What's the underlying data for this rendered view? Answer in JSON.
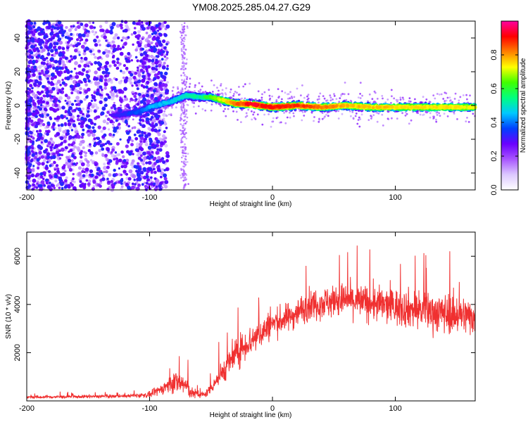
{
  "chart_data": [
    {
      "type": "heatmap",
      "title": "YM08.2025.285.04.27.G29",
      "xlabel": "Height of straight line (km)",
      "ylabel": "Frequency (Hz)",
      "xlim": [
        -200,
        165
      ],
      "ylim": [
        -50,
        50
      ],
      "xticks": [
        -200,
        -100,
        0,
        100
      ],
      "yticks": [
        -40,
        -20,
        0,
        20,
        40
      ],
      "colorbar": {
        "label": "Normalized spectral amplitude",
        "range": [
          0,
          1
        ],
        "ticks": [
          0.0,
          0.2,
          0.4,
          0.6,
          0.8
        ],
        "colors": [
          "#ffffff",
          "#dcc8ff",
          "#a855ff",
          "#6a00ff",
          "#0040ff",
          "#00c8ff",
          "#00ff80",
          "#40ff00",
          "#ffff00",
          "#ff8000",
          "#ff0000",
          "#ff00a0"
        ]
      },
      "ridge": [
        {
          "x": -130,
          "y": -6
        },
        {
          "x": -120,
          "y": -5
        },
        {
          "x": -110,
          "y": -4
        },
        {
          "x": -100,
          "y": -1
        },
        {
          "x": -90,
          "y": 1
        },
        {
          "x": -80,
          "y": 3
        },
        {
          "x": -70,
          "y": 6
        },
        {
          "x": -60,
          "y": 5
        },
        {
          "x": -50,
          "y": 5
        },
        {
          "x": -40,
          "y": 3
        },
        {
          "x": -30,
          "y": 1
        },
        {
          "x": -20,
          "y": 1
        },
        {
          "x": -10,
          "y": 0
        },
        {
          "x": 0,
          "y": -1
        },
        {
          "x": 20,
          "y": 0
        },
        {
          "x": 40,
          "y": -1
        },
        {
          "x": 60,
          "y": 0
        },
        {
          "x": 80,
          "y": -1
        },
        {
          "x": 100,
          "y": -1
        },
        {
          "x": 120,
          "y": -1
        },
        {
          "x": 140,
          "y": -1
        },
        {
          "x": 165,
          "y": -1
        }
      ],
      "amplitude_profile": [
        {
          "x": -200,
          "a": 0.22
        },
        {
          "x": -140,
          "a": 0.25
        },
        {
          "x": -120,
          "a": 0.35
        },
        {
          "x": -100,
          "a": 0.45
        },
        {
          "x": -80,
          "a": 0.5
        },
        {
          "x": -60,
          "a": 0.55
        },
        {
          "x": -40,
          "a": 0.75
        },
        {
          "x": -20,
          "a": 0.95
        },
        {
          "x": 20,
          "a": 0.9
        },
        {
          "x": 60,
          "a": 0.8
        },
        {
          "x": 100,
          "a": 0.78
        },
        {
          "x": 165,
          "a": 0.75
        }
      ]
    },
    {
      "type": "line",
      "xlabel": "Height of straight line (km)",
      "ylabel": "SNR (10 * v/v)",
      "xlim": [
        -200,
        165
      ],
      "ylim": [
        0,
        7000
      ],
      "xticks": [
        -200,
        -100,
        0,
        100
      ],
      "yticks": [
        2000,
        4000,
        6000
      ],
      "series": [
        {
          "name": "SNR",
          "color": "#f03030",
          "envelope": [
            {
              "x": -200,
              "mean": 150,
              "amp": 100
            },
            {
              "x": -120,
              "mean": 200,
              "amp": 100
            },
            {
              "x": -100,
              "mean": 250,
              "amp": 180
            },
            {
              "x": -90,
              "mean": 500,
              "amp": 350
            },
            {
              "x": -80,
              "mean": 800,
              "amp": 700
            },
            {
              "x": -72,
              "mean": 700,
              "amp": 800
            },
            {
              "x": -65,
              "mean": 300,
              "amp": 350
            },
            {
              "x": -55,
              "mean": 250,
              "amp": 200
            },
            {
              "x": -45,
              "mean": 900,
              "amp": 600
            },
            {
              "x": -35,
              "mean": 1600,
              "amp": 900
            },
            {
              "x": -25,
              "mean": 2200,
              "amp": 1000
            },
            {
              "x": -10,
              "mean": 2800,
              "amp": 1000
            },
            {
              "x": 0,
              "mean": 3200,
              "amp": 900
            },
            {
              "x": 15,
              "mean": 3500,
              "amp": 900
            },
            {
              "x": 30,
              "mean": 4000,
              "amp": 1000
            },
            {
              "x": 60,
              "mean": 4200,
              "amp": 1100
            },
            {
              "x": 100,
              "mean": 3900,
              "amp": 1200
            },
            {
              "x": 130,
              "mean": 3700,
              "amp": 1300
            },
            {
              "x": 165,
              "mean": 3500,
              "amp": 1200
            }
          ]
        }
      ]
    }
  ]
}
